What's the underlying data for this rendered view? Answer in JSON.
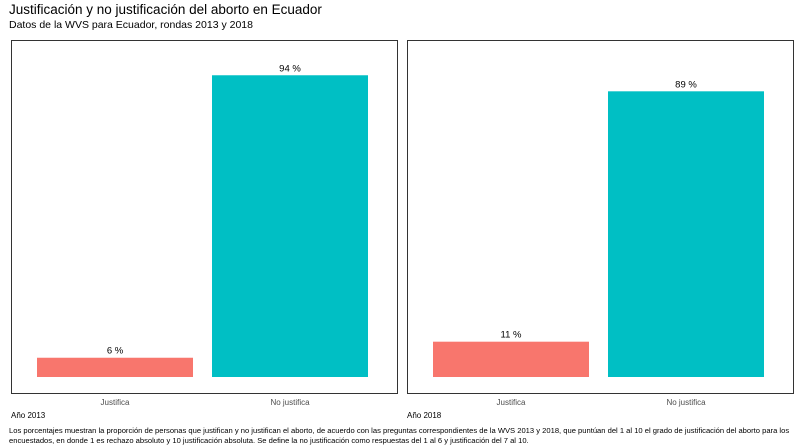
{
  "title": "Justificación y no justificación del aborto en Ecuador",
  "subtitle": "Datos de la WVS para Ecuador, rondas 2013 y 2018",
  "caption": "Los porcentajes muestran la proporción de personas que justifican y no justifican el aborto, de acuerdo con las preguntas correspondientes de la WVS 2013 y 2018, que puntúan del 1 al 10 el grado de justificación del aborto para los encuestados, en donde 1 es rechazo absoluto y 10 justificación absoluta. Se define la no justificación como respuestas del 1 al 6 y justificación del 7 al 10.",
  "colors": {
    "justifica": "#F8766D",
    "no_justifica": "#00BFC4",
    "frame": "#333333"
  },
  "chart_data": [
    {
      "type": "bar",
      "panel_label": "Año 2013",
      "categories": [
        "Justifica",
        "No justifica"
      ],
      "values": [
        6,
        94
      ],
      "data_labels": [
        "6 %",
        "94 %"
      ],
      "ylim": [
        0,
        100
      ],
      "grid": false,
      "title": "",
      "xlabel": "",
      "ylabel": ""
    },
    {
      "type": "bar",
      "panel_label": "Año 2018",
      "categories": [
        "Justifica",
        "No justifica"
      ],
      "values": [
        11,
        89
      ],
      "data_labels": [
        "11 %",
        "89 %"
      ],
      "ylim": [
        0,
        100
      ],
      "grid": false,
      "title": "",
      "xlabel": "",
      "ylabel": ""
    }
  ]
}
